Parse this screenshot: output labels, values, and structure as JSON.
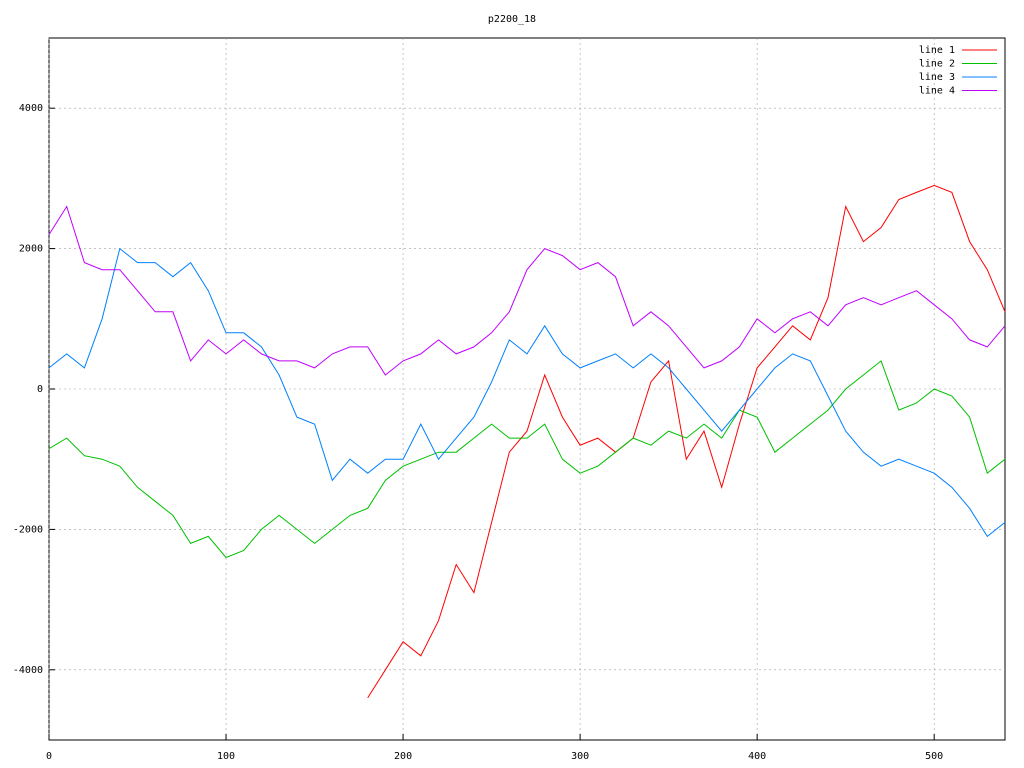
{
  "chart_data": {
    "type": "line",
    "title": "p2200_18",
    "x": [
      0,
      10,
      20,
      30,
      40,
      50,
      60,
      70,
      80,
      90,
      100,
      110,
      120,
      130,
      140,
      150,
      160,
      170,
      180,
      190,
      200,
      210,
      220,
      230,
      240,
      250,
      260,
      270,
      280,
      290,
      300,
      310,
      320,
      330,
      340,
      350,
      360,
      370,
      380,
      390,
      400,
      410,
      420,
      430,
      440,
      450,
      460,
      470,
      480,
      490,
      500,
      510,
      520,
      530,
      540
    ],
    "series": [
      {
        "name": "line 1",
        "color": "#ff0000",
        "values": [
          null,
          null,
          null,
          null,
          null,
          null,
          null,
          null,
          null,
          null,
          null,
          null,
          null,
          null,
          null,
          null,
          null,
          null,
          -4400,
          -4000,
          -3600,
          -3800,
          -3300,
          -2500,
          -2900,
          -1900,
          -900,
          -600,
          200,
          -400,
          -800,
          -700,
          -900,
          -700,
          100,
          400,
          -1000,
          -600,
          -1400,
          -500,
          300,
          600,
          900,
          700,
          1300,
          2600,
          2100,
          2300,
          2700,
          2800,
          2900,
          2800,
          2100,
          1700,
          1100
        ]
      },
      {
        "name": "line 2",
        "color": "#00c000",
        "values": [
          -850,
          -700,
          -950,
          -1000,
          -1100,
          -1400,
          -1600,
          -1800,
          -2200,
          -2100,
          -2400,
          -2300,
          -2000,
          -1800,
          -2000,
          -2200,
          -2000,
          -1800,
          -1700,
          -1300,
          -1100,
          -1000,
          -900,
          -900,
          -700,
          -500,
          -700,
          -700,
          -500,
          -1000,
          -1200,
          -1100,
          -900,
          -700,
          -800,
          -600,
          -700,
          -500,
          -700,
          -300,
          -400,
          -900,
          -700,
          -500,
          -300,
          0,
          200,
          400,
          -300,
          -200,
          0,
          -100,
          -400,
          -1200,
          -1000
        ]
      },
      {
        "name": "line 3",
        "color": "#0080ff",
        "values": [
          300,
          500,
          300,
          1000,
          2000,
          1800,
          1800,
          1600,
          1800,
          1400,
          800,
          800,
          600,
          200,
          -400,
          -500,
          -1300,
          -1000,
          -1200,
          -1000,
          -1000,
          -500,
          -1000,
          -700,
          -400,
          100,
          700,
          500,
          900,
          500,
          300,
          400,
          500,
          300,
          500,
          300,
          0,
          -300,
          -600,
          -300,
          0,
          300,
          500,
          400,
          -100,
          -600,
          -900,
          -1100,
          -1000,
          -1100,
          -1200,
          -1400,
          -1700,
          -2100,
          -1900
        ]
      },
      {
        "name": "line 4",
        "color": "#c000ff",
        "values": [
          2200,
          2600,
          1800,
          1700,
          1700,
          1400,
          1100,
          1100,
          400,
          700,
          500,
          700,
          500,
          400,
          400,
          300,
          500,
          600,
          600,
          200,
          400,
          500,
          700,
          500,
          600,
          800,
          1100,
          1700,
          2000,
          1900,
          1700,
          1800,
          1600,
          900,
          1100,
          900,
          600,
          300,
          400,
          600,
          1000,
          800,
          1000,
          1100,
          900,
          1200,
          1300,
          1200,
          1300,
          1400,
          1200,
          1000,
          700,
          600,
          900
        ]
      }
    ],
    "xlim": [
      0,
      540
    ],
    "ylim": [
      -5000,
      5000
    ],
    "xticks": [
      0,
      100,
      200,
      300,
      400,
      500
    ],
    "yticks": [
      -4000,
      -2000,
      0,
      2000,
      4000
    ],
    "grid": true,
    "legend": "top-right"
  }
}
